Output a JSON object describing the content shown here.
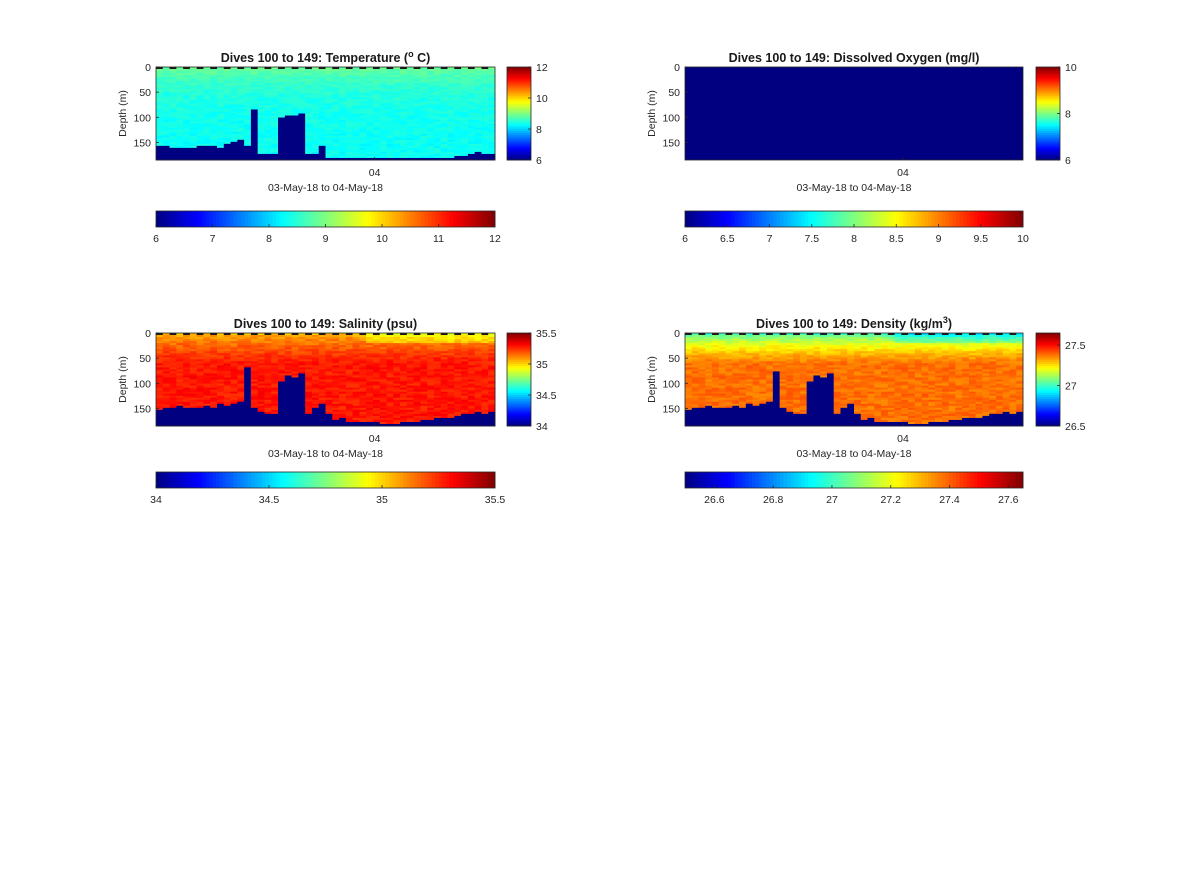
{
  "chart_data": [
    {
      "type": "heatmap",
      "title": "Dives 100 to 149: Temperature (",
      "title_sup": "o",
      "title_suffix": " C)",
      "ylabel": "Depth (m)",
      "xtick_label": "04",
      "xlabel": "03-May-18 to 04-May-18",
      "ylim": [
        0,
        185
      ],
      "yticks": [
        0,
        50,
        100,
        150
      ],
      "clim": [
        6,
        12
      ],
      "side_colorbar_ticks": [
        "12",
        "10",
        "8",
        "6"
      ],
      "side_colorbar_values": [
        12,
        10,
        8,
        6
      ],
      "bottom_colorbar_ticks": [
        "6",
        "7",
        "8",
        "9",
        "10",
        "11",
        "12"
      ],
      "bottom_colorbar_values": [
        6,
        7,
        8,
        9,
        10,
        11,
        12
      ],
      "dives": 50,
      "field": "uniform",
      "surface_value": 8.9,
      "deep_value": 8.3,
      "bottom_depths_m": [
        157,
        158,
        159,
        160,
        159,
        160,
        157,
        158,
        155,
        159,
        152,
        150,
        145,
        157,
        170,
        171,
        172,
        172,
        100,
        95,
        96,
        93,
        172,
        172,
        155,
        180,
        182,
        182,
        182,
        182,
        182,
        182,
        182,
        182,
        182,
        182,
        182,
        182,
        182,
        182,
        182,
        182,
        182,
        182,
        178,
        175,
        172,
        170,
        171,
        174
      ],
      "spikes": [
        {
          "dive": 14,
          "top_m": 85
        }
      ]
    },
    {
      "type": "heatmap",
      "title": "Dives 100 to 149: Dissolved Oxygen (mg/l)",
      "title_sup": "",
      "title_suffix": "",
      "ylabel": "Depth (m)",
      "xtick_label": "04",
      "xlabel": "03-May-18 to 04-May-18",
      "ylim": [
        0,
        185
      ],
      "yticks": [
        0,
        50,
        100,
        150
      ],
      "clim": [
        6,
        10
      ],
      "side_colorbar_ticks": [
        "10",
        "8",
        "6"
      ],
      "side_colorbar_values": [
        10,
        8,
        6
      ],
      "bottom_colorbar_ticks": [
        "6",
        "6.5",
        "7",
        "7.5",
        "8",
        "8.5",
        "9",
        "9.5",
        "10"
      ],
      "bottom_colorbar_values": [
        6,
        6.5,
        7,
        7.5,
        8,
        8.5,
        9,
        9.5,
        10
      ],
      "dives": 50,
      "field": "empty",
      "surface_value": 6,
      "deep_value": 6,
      "bottom_depths_m": [],
      "spikes": []
    },
    {
      "type": "heatmap",
      "title": "Dives 100 to 149: Salinity (psu)",
      "title_sup": "",
      "title_suffix": "",
      "ylabel": "Depth (m)",
      "xtick_label": "04",
      "xlabel": "03-May-18 to 04-May-18",
      "ylim": [
        0,
        185
      ],
      "yticks": [
        0,
        50,
        100,
        150
      ],
      "clim": [
        34,
        35.5
      ],
      "side_colorbar_ticks": [
        "35.5",
        "35",
        "34.5",
        "34"
      ],
      "side_colorbar_values": [
        35.5,
        35,
        34.5,
        34
      ],
      "bottom_colorbar_ticks": [
        "34",
        "34.5",
        "35",
        "35.5"
      ],
      "bottom_colorbar_values": [
        34,
        34.5,
        35,
        35.5
      ],
      "dives": 50,
      "field": "stratified",
      "surface_value": 35.0,
      "deep_value": 35.28,
      "bottom_depths_m": [
        152,
        148,
        150,
        146,
        149,
        147,
        150,
        145,
        148,
        142,
        145,
        140,
        135,
        162,
        150,
        158,
        160,
        160,
        95,
        85,
        88,
        80,
        160,
        150,
        140,
        160,
        172,
        170,
        175,
        178,
        178,
        178,
        178,
        180,
        180,
        180,
        178,
        175,
        175,
        174,
        172,
        170,
        170,
        168,
        165,
        162,
        160,
        158,
        160,
        158
      ],
      "spikes": [
        {
          "dive": 13,
          "top_m": 70
        }
      ]
    },
    {
      "type": "heatmap",
      "title": "Dives 100 to 149: Density (kg/m",
      "title_sup": "3",
      "title_suffix": ")",
      "ylabel": "Depth (m)",
      "xtick_label": "04",
      "xlabel": "03-May-18 to 04-May-18",
      "ylim": [
        0,
        185
      ],
      "yticks": [
        0,
        50,
        100,
        150
      ],
      "clim": [
        26.5,
        27.65
      ],
      "side_colorbar_ticks": [
        "27.5",
        "27",
        "26.5"
      ],
      "side_colorbar_values": [
        27.5,
        27,
        26.5
      ],
      "bottom_colorbar_ticks": [
        "26.6",
        "26.8",
        "27",
        "27.2",
        "27.4",
        "27.6"
      ],
      "bottom_colorbar_values": [
        26.6,
        26.8,
        27,
        27.2,
        27.4,
        27.6
      ],
      "dives": 50,
      "field": "stratified",
      "surface_value": 26.95,
      "deep_value": 27.38,
      "bottom_depths_m": [
        152,
        148,
        150,
        146,
        149,
        147,
        150,
        145,
        148,
        142,
        145,
        140,
        135,
        162,
        150,
        158,
        160,
        160,
        95,
        85,
        88,
        80,
        160,
        150,
        140,
        160,
        172,
        170,
        175,
        178,
        178,
        178,
        178,
        180,
        180,
        180,
        178,
        175,
        175,
        174,
        172,
        170,
        170,
        168,
        165,
        162,
        160,
        158,
        160,
        158
      ],
      "spikes": [
        {
          "dive": 13,
          "top_m": 75
        }
      ]
    }
  ]
}
